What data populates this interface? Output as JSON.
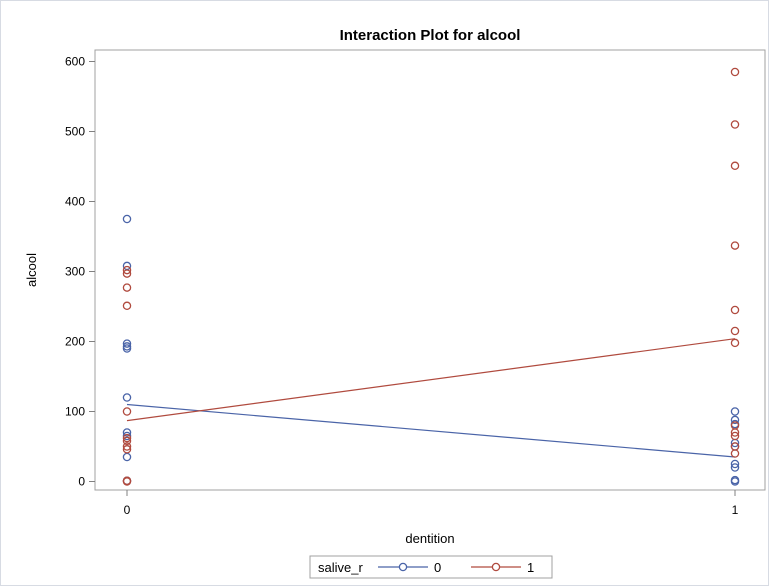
{
  "chart_data": {
    "type": "scatter",
    "title": "Interaction Plot for alcool",
    "xlabel": "dentition",
    "ylabel": "alcool",
    "categories": [
      "0",
      "1"
    ],
    "ylim": [
      0,
      600
    ],
    "yticks": [
      0,
      100,
      200,
      300,
      400,
      500,
      600
    ],
    "grid": false,
    "legend_placement": "bottom",
    "legend_title": "salive_r",
    "series": [
      {
        "name": "0",
        "color": "#4a64a8",
        "points": [
          {
            "x": "0",
            "y": 375
          },
          {
            "x": "0",
            "y": 308
          },
          {
            "x": "0",
            "y": 197
          },
          {
            "x": "0",
            "y": 193
          },
          {
            "x": "0",
            "y": 190
          },
          {
            "x": "0",
            "y": 120
          },
          {
            "x": "0",
            "y": 70
          },
          {
            "x": "0",
            "y": 65
          },
          {
            "x": "0",
            "y": 35
          },
          {
            "x": "0",
            "y": 1
          },
          {
            "x": "1",
            "y": 100
          },
          {
            "x": "1",
            "y": 88
          },
          {
            "x": "1",
            "y": 82
          },
          {
            "x": "1",
            "y": 55
          },
          {
            "x": "1",
            "y": 50
          },
          {
            "x": "1",
            "y": 25
          },
          {
            "x": "1",
            "y": 20
          },
          {
            "x": "1",
            "y": 2
          },
          {
            "x": "1",
            "y": 0
          }
        ],
        "means": [
          {
            "x": "0",
            "y": 110
          },
          {
            "x": "1",
            "y": 35
          }
        ]
      },
      {
        "name": "1",
        "color": "#b04a3e",
        "points": [
          {
            "x": "0",
            "y": 302
          },
          {
            "x": "0",
            "y": 297
          },
          {
            "x": "0",
            "y": 277
          },
          {
            "x": "0",
            "y": 251
          },
          {
            "x": "0",
            "y": 100
          },
          {
            "x": "0",
            "y": 62
          },
          {
            "x": "0",
            "y": 58
          },
          {
            "x": "0",
            "y": 50
          },
          {
            "x": "0",
            "y": 46
          },
          {
            "x": "0",
            "y": 1
          },
          {
            "x": "0",
            "y": 0
          },
          {
            "x": "1",
            "y": 585
          },
          {
            "x": "1",
            "y": 510
          },
          {
            "x": "1",
            "y": 451
          },
          {
            "x": "1",
            "y": 337
          },
          {
            "x": "1",
            "y": 245
          },
          {
            "x": "1",
            "y": 215
          },
          {
            "x": "1",
            "y": 198
          },
          {
            "x": "1",
            "y": 80
          },
          {
            "x": "1",
            "y": 70
          },
          {
            "x": "1",
            "y": 65
          },
          {
            "x": "1",
            "y": 50
          },
          {
            "x": "1",
            "y": 40
          }
        ],
        "means": [
          {
            "x": "0",
            "y": 87
          },
          {
            "x": "1",
            "y": 204
          }
        ]
      }
    ]
  }
}
